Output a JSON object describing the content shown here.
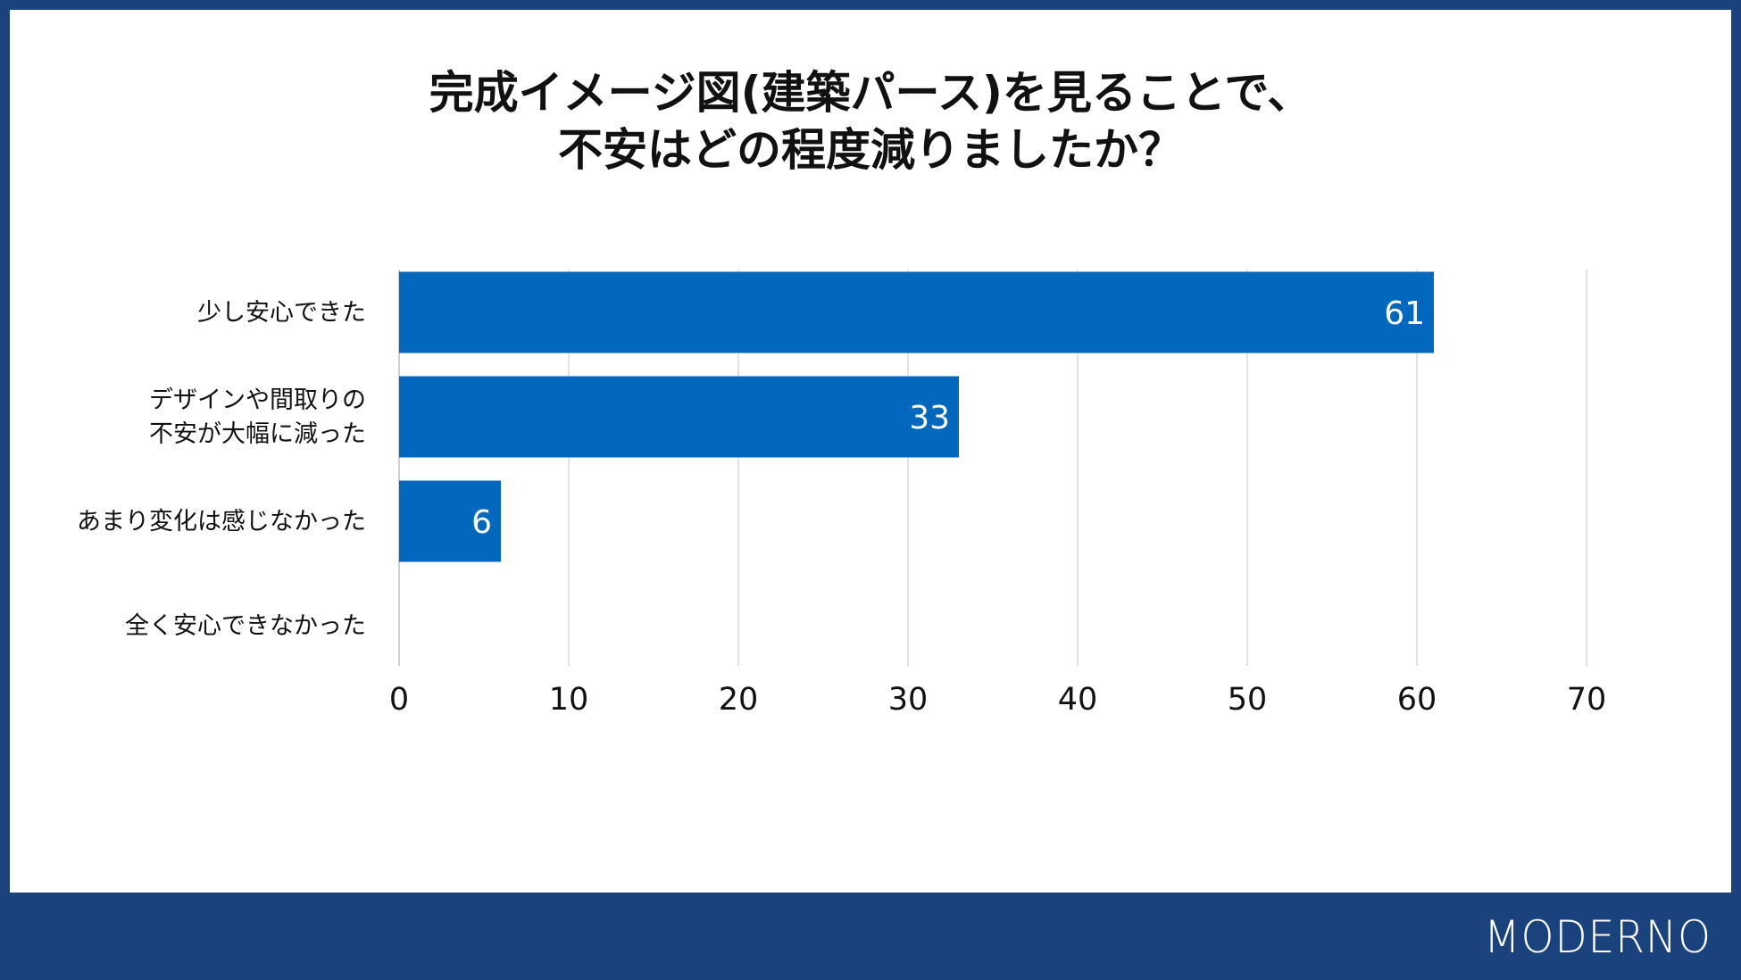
{
  "title": {
    "line1": "完成イメージ図(建築パース)を見ることで、",
    "line2": "不安はどの程度減りましたか？"
  },
  "chart_data": {
    "type": "bar",
    "orientation": "horizontal",
    "categories": [
      [
        "少し安心できた"
      ],
      [
        "デザインや間取りの",
        "不安が大幅に減った"
      ],
      [
        "あまり変化は感じなかった"
      ],
      [
        "全く安心できなかった"
      ]
    ],
    "values": [
      61,
      33,
      6,
      0
    ],
    "data_labels": [
      "61",
      "33",
      "6",
      ""
    ],
    "xlim": [
      0,
      70
    ],
    "xticks": [
      0,
      10,
      20,
      30,
      40,
      50,
      60,
      70
    ],
    "grid": true,
    "bar_color": "#0268bd",
    "grid_color": "#d9d9d9"
  },
  "brand": {
    "logo": "MODERNO"
  },
  "colors": {
    "frame": "#1a427d",
    "background": "#ffffff",
    "text": "#111111"
  }
}
